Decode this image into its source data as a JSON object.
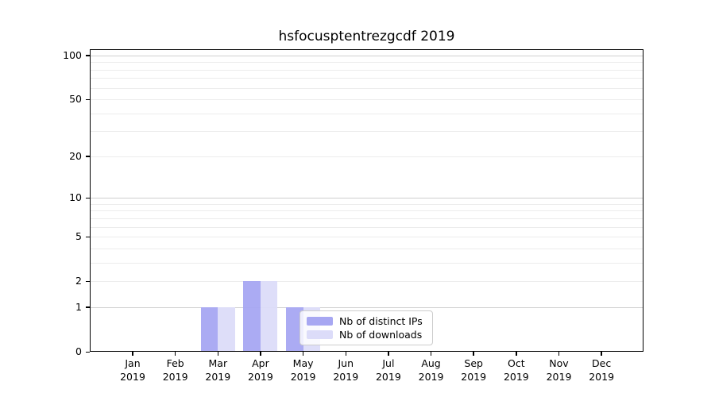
{
  "chart_data": {
    "type": "bar",
    "title": "hsfocusptentrezgcdf 2019",
    "categories": [
      "Jan",
      "Feb",
      "Mar",
      "Apr",
      "May",
      "Jun",
      "Jul",
      "Aug",
      "Sep",
      "Oct",
      "Nov",
      "Dec"
    ],
    "category_year": "2019",
    "series": [
      {
        "name": "Nb of distinct IPs",
        "color": "#a7a7f2",
        "values": [
          0,
          0,
          1,
          2,
          1,
          0,
          0,
          0,
          0,
          0,
          0,
          0
        ]
      },
      {
        "name": "Nb of downloads",
        "color": "#dcdcf9",
        "values": [
          0,
          0,
          1,
          2,
          1,
          0,
          0,
          0,
          0,
          0,
          0,
          0
        ]
      }
    ],
    "xlabel": "",
    "ylabel": "",
    "yscale": "log1p",
    "ylim": [
      0,
      110
    ],
    "yticks": [
      100,
      50,
      20,
      10,
      5,
      2,
      1,
      0
    ],
    "major_gridlines": [
      1,
      10,
      100
    ],
    "minor_gridlines": [
      3,
      4,
      5,
      6,
      7,
      8,
      9,
      20,
      30,
      40,
      50,
      60,
      70,
      80,
      90,
      2
    ],
    "grid": "on",
    "grid_color_major": "#cfcfcf",
    "grid_color_minor": "#ececec",
    "legend_position": "lower center (inside plot)"
  }
}
